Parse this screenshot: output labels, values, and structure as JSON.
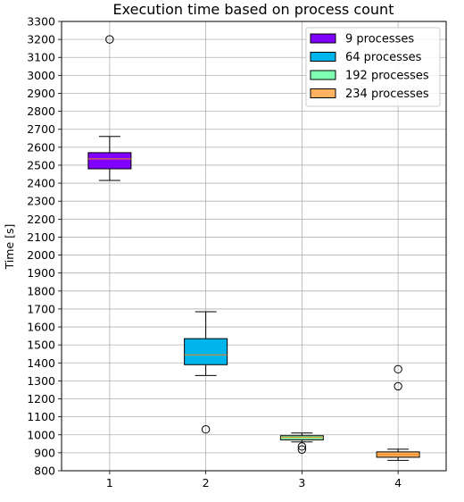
{
  "chart_data": {
    "type": "box",
    "title": "Execution time based on process count",
    "xlabel": "",
    "ylabel": "Time [s]",
    "xlim": [
      0.5,
      4.5
    ],
    "ylim": [
      800,
      3300
    ],
    "yticks": [
      800,
      900,
      1000,
      1100,
      1200,
      1300,
      1400,
      1500,
      1600,
      1700,
      1800,
      1900,
      2000,
      2100,
      2200,
      2300,
      2400,
      2500,
      2600,
      2700,
      2800,
      2900,
      3000,
      3100,
      3200,
      3300
    ],
    "categories": [
      "1",
      "2",
      "3",
      "4"
    ],
    "grid": true,
    "legend_position": "top-right",
    "series": [
      {
        "name": "9 processes",
        "position": 1,
        "color": "#8000ff",
        "whisker_low": 2415,
        "q1": 2480,
        "median": 2535,
        "q3": 2570,
        "whisker_high": 2660,
        "outliers": [
          3200
        ]
      },
      {
        "name": "64 processes",
        "position": 2,
        "color": "#00b5eb",
        "whisker_low": 1330,
        "q1": 1390,
        "median": 1445,
        "q3": 1535,
        "whisker_high": 1685,
        "outliers": [
          1030
        ]
      },
      {
        "name": "192 processes",
        "position": 3,
        "color": "#80ffb4",
        "whisker_low": 960,
        "q1": 972,
        "median": 985,
        "q3": 995,
        "whisker_high": 1010,
        "outliers": [
          935,
          918
        ]
      },
      {
        "name": "234 processes",
        "position": 4,
        "color": "#ffb360",
        "whisker_low": 858,
        "q1": 875,
        "median": 890,
        "q3": 905,
        "whisker_high": 920,
        "outliers": [
          1365,
          1270
        ]
      }
    ],
    "median_color": "#ff7f0e"
  }
}
